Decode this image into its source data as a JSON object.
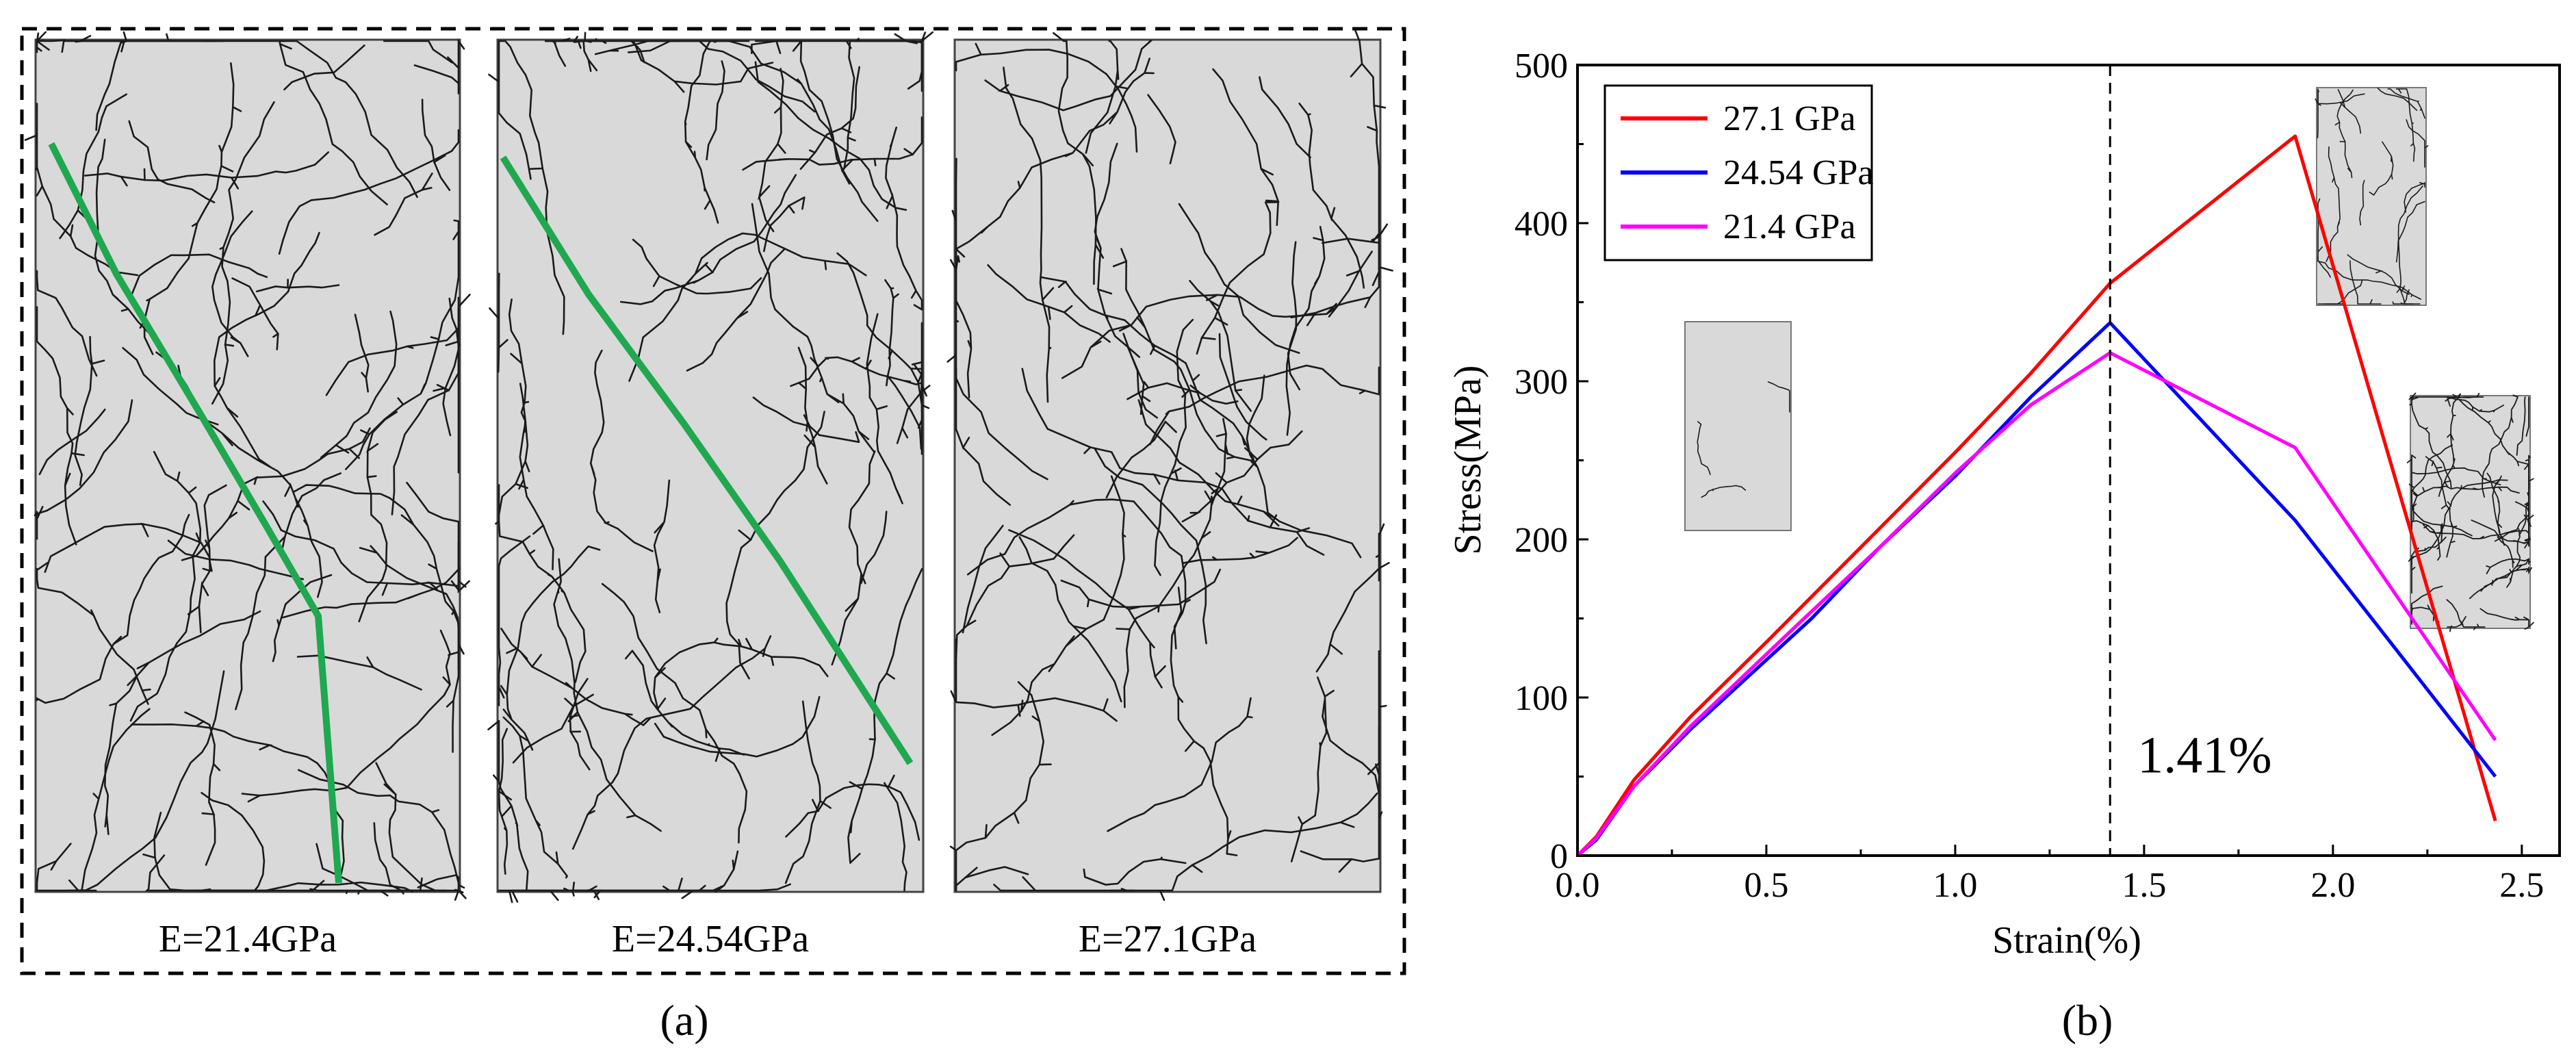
{
  "panel_a": {
    "caption": "(a)",
    "samples": [
      {
        "label": "E=21.4GPa"
      },
      {
        "label": "E=24.54GPa"
      },
      {
        "label": "E=27.1GPa"
      }
    ],
    "colors": {
      "specimen_fill": "#d9d9d9",
      "crack": "#1a1a1a",
      "fracture_path": "#1fa84f"
    }
  },
  "panel_b": {
    "caption": "(b)",
    "annotation": "1.41%",
    "marker_strain": 1.41
  },
  "chart_data": {
    "type": "line",
    "xlabel": "Strain(%)",
    "ylabel": "Stress(MPa)",
    "xlim": [
      0,
      2.6
    ],
    "ylim": [
      0,
      500
    ],
    "xticks": [
      "0.0",
      "0.5",
      "1.0",
      "1.5",
      "2.0",
      "2.5"
    ],
    "yticks": [
      "0",
      "100",
      "200",
      "300",
      "400",
      "500"
    ],
    "legend_position": "top-left",
    "series": [
      {
        "name": "27.1 GPa",
        "color": "#ff0000",
        "x": [
          0,
          0.05,
          0.15,
          0.3,
          0.5,
          0.75,
          1.0,
          1.2,
          1.41,
          1.9,
          2.43
        ],
        "y": [
          0,
          12,
          48,
          88,
          135,
          195,
          255,
          305,
          362,
          455,
          22
        ]
      },
      {
        "name": "24.54 GPa",
        "color": "#0000ff",
        "x": [
          0,
          0.05,
          0.15,
          0.3,
          0.62,
          0.8,
          1.0,
          1.2,
          1.41,
          1.9,
          2.43
        ],
        "y": [
          0,
          10,
          44,
          80,
          150,
          195,
          240,
          290,
          337,
          212,
          50
        ]
      },
      {
        "name": "21.4 GPa",
        "color": "#ff00ff",
        "x": [
          0,
          0.05,
          0.15,
          0.3,
          0.6,
          0.8,
          1.0,
          1.2,
          1.41,
          1.9,
          2.43
        ],
        "y": [
          0,
          11,
          44,
          82,
          150,
          195,
          242,
          285,
          318,
          258,
          73
        ]
      }
    ]
  }
}
